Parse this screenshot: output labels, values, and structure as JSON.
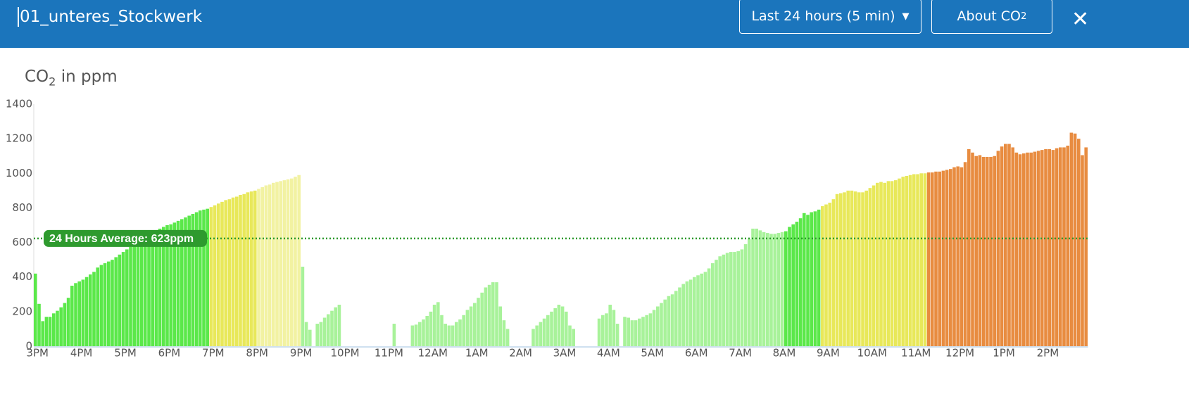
{
  "header": {
    "title": "01_unteres_Stockwerk",
    "range": "Last 24 hours (5 min)",
    "about": {
      "text": "About CO",
      "sub": "2"
    },
    "close": "✕"
  },
  "chart_data": {
    "type": "bar",
    "y_title": {
      "text": "CO",
      "sub": "2",
      "rest": " in ppm"
    },
    "ylim": [
      0,
      1400
    ],
    "yticks": [
      0,
      200,
      400,
      600,
      800,
      1000,
      1200,
      1400
    ],
    "xtick_labels": [
      "3PM",
      "4PM",
      "5PM",
      "6PM",
      "7PM",
      "8PM",
      "9PM",
      "10PM",
      "11PM",
      "12AM",
      "1AM",
      "2AM",
      "3AM",
      "4AM",
      "5AM",
      "6AM",
      "7AM",
      "8AM",
      "9AM",
      "10AM",
      "11AM",
      "12PM",
      "1PM",
      "2PM"
    ],
    "average": {
      "value": 623,
      "label": "24 Hours Average: 623ppm",
      "color": "#2e9a2e"
    },
    "series": [
      {
        "color": "#5be84a",
        "values": [
          420,
          245,
          145,
          170,
          170,
          190,
          205,
          225,
          250,
          280,
          350,
          365,
          375,
          385,
          400,
          415,
          430,
          455,
          470,
          480,
          490,
          500,
          515,
          530,
          545,
          560,
          575,
          590,
          600,
          610,
          625,
          640,
          655,
          665,
          680,
          690,
          700,
          705,
          715,
          725,
          735,
          745,
          755,
          765,
          775,
          785,
          790,
          795
        ]
      },
      {
        "color": "#e8e85a",
        "values": [
          805,
          815,
          825,
          835,
          845,
          850,
          860,
          865,
          875,
          880,
          890,
          895,
          900
        ]
      },
      {
        "color": "#f2f2a2",
        "values": [
          910,
          920,
          930,
          935,
          945,
          950,
          955,
          960,
          965,
          970,
          980,
          990
        ]
      },
      {
        "color": "#a8f29a",
        "values": [
          460,
          140,
          95,
          0,
          130,
          140,
          165,
          185,
          205,
          225,
          240,
          0,
          0,
          0,
          0,
          0,
          0,
          0,
          0,
          0,
          0,
          0,
          0,
          0,
          0,
          130,
          0,
          0,
          0,
          0,
          120,
          125,
          140,
          155,
          175,
          200,
          240,
          255,
          180,
          130,
          120,
          120,
          140,
          155,
          180,
          210,
          230,
          250,
          280,
          310,
          340,
          355,
          370,
          370,
          230,
          150,
          100,
          0,
          0,
          0,
          0,
          0,
          0,
          100,
          120,
          140,
          160,
          180,
          200,
          220,
          240,
          230,
          200,
          120,
          100,
          0,
          0,
          0,
          0,
          0,
          0,
          160,
          180,
          190,
          240,
          210,
          130,
          0,
          170,
          165,
          150,
          150,
          160,
          170,
          180,
          190,
          210,
          230,
          250,
          270,
          290,
          300,
          320,
          340,
          360,
          375,
          385,
          400,
          410,
          420,
          430,
          450,
          480,
          500,
          520,
          530,
          540,
          545,
          545,
          550,
          560,
          590,
          620,
          680,
          680,
          670,
          660,
          655,
          650,
          650,
          655,
          660
        ]
      },
      {
        "color": "#5be84a",
        "values": [
          665,
          690,
          705,
          720,
          740,
          770,
          760,
          775,
          780,
          790
        ]
      },
      {
        "color": "#e8e85a",
        "values": [
          810,
          820,
          830,
          850,
          880,
          885,
          890,
          900,
          900,
          895,
          890,
          890,
          900,
          915,
          930,
          945,
          950,
          945,
          955,
          955,
          960,
          970,
          980,
          985,
          990,
          995,
          995,
          1000,
          1000
        ]
      },
      {
        "color": "#e88c40",
        "values": [
          1005,
          1005,
          1010,
          1010,
          1015,
          1020,
          1025,
          1035,
          1040,
          1035,
          1065,
          1140,
          1120,
          1100,
          1105,
          1095,
          1095,
          1095,
          1100,
          1130,
          1155,
          1170,
          1170,
          1150,
          1120,
          1110,
          1115,
          1120,
          1120,
          1125,
          1130,
          1135,
          1140,
          1140,
          1135,
          1145,
          1150,
          1150,
          1160,
          1235,
          1230,
          1200,
          1105,
          1150
        ]
      }
    ]
  }
}
